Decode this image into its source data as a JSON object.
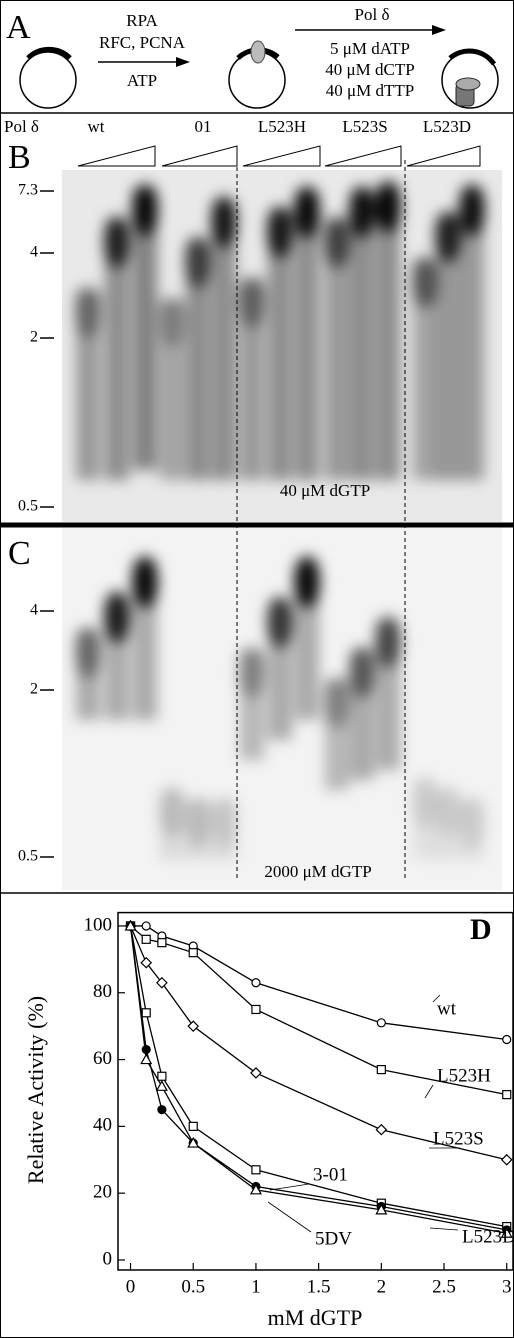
{
  "panel_a": {
    "label": "A",
    "step1_above": [
      "RPA",
      "RFC, PCNA"
    ],
    "step1_below": "ATP",
    "step2_above": "Pol δ",
    "step2_below": [
      "5 μM dATP",
      "40 μM dCTP",
      "40 μM dTTP"
    ]
  },
  "panel_b": {
    "label": "B",
    "enzyme_label": "Pol δ",
    "lanes": [
      "wt",
      "01",
      "L523H",
      "L523S",
      "L523D"
    ],
    "size_markers": [
      "7.3",
      "4",
      "2",
      "0.5"
    ],
    "condition": "40 μM dGTP"
  },
  "panel_c": {
    "label": "C",
    "size_markers": [
      "4",
      "2",
      "0.5"
    ],
    "condition": "2000 μM dGTP"
  },
  "chart_data": {
    "type": "line",
    "panel_label": "D",
    "y_label": "Relative Activity (%)",
    "x_label": "mM dGTP",
    "x": [
      0,
      0.125,
      0.25,
      0.5,
      1,
      2,
      3
    ],
    "xlim": [
      -0.1,
      3.05
    ],
    "xticks": [
      0,
      0.5,
      1,
      1.5,
      2,
      2.5,
      3
    ],
    "ylim": [
      -3,
      104
    ],
    "yticks": [
      0,
      20,
      40,
      60,
      80,
      100
    ],
    "series": [
      {
        "name": "wt",
        "color": "#000000",
        "marker": "circle",
        "values": [
          100,
          100,
          97,
          94,
          83,
          71,
          66
        ]
      },
      {
        "name": "L523H",
        "color": "#000000",
        "marker": "square",
        "values": [
          100,
          96,
          95,
          92,
          75,
          57,
          49.5
        ]
      },
      {
        "name": "L523S",
        "color": "#000000",
        "marker": "diamond",
        "values": [
          100,
          89,
          83,
          70,
          56,
          39,
          30
        ]
      },
      {
        "name": "3-01",
        "color": "#000000",
        "marker": "square",
        "values": [
          100,
          74,
          55,
          40,
          27,
          17,
          10
        ]
      },
      {
        "name": "5DV",
        "color": "#000000",
        "marker": "filled-circle",
        "values": [
          100,
          63,
          45,
          35,
          22,
          16,
          9
        ]
      },
      {
        "name": "L523D",
        "color": "#000000",
        "marker": "triangle",
        "values": [
          100,
          60,
          52,
          35,
          21,
          15,
          8
        ]
      }
    ]
  }
}
